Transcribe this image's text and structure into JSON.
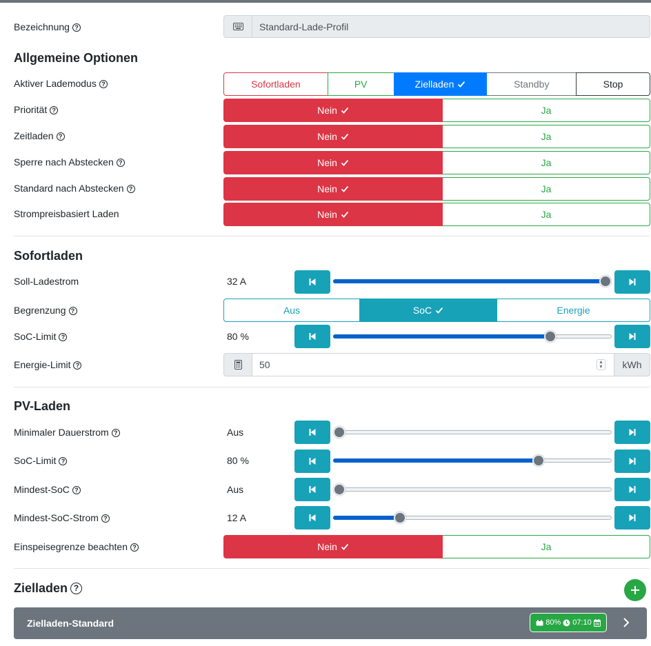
{
  "bezeichnung": {
    "label": "Bezeichnung",
    "value": "Standard-Lade-Profil",
    "icon": "keyboard-icon"
  },
  "allgemein": {
    "heading": "Allgemeine Optionen",
    "lademodus": {
      "label": "Aktiver Lademodus",
      "options": [
        "Sofortladen",
        "PV",
        "Zielladen",
        "Standby",
        "Stop"
      ],
      "selected": "Zielladen"
    },
    "prioritaet": {
      "label": "Priorität",
      "no": "Nein",
      "yes": "Ja",
      "selected": "Nein"
    },
    "zeitladen": {
      "label": "Zeitladen",
      "no": "Nein",
      "yes": "Ja",
      "selected": "Nein"
    },
    "sperre": {
      "label": "Sperre nach Abstecken",
      "no": "Nein",
      "yes": "Ja",
      "selected": "Nein"
    },
    "standard": {
      "label": "Standard nach Abstecken",
      "no": "Nein",
      "yes": "Ja",
      "selected": "Nein"
    },
    "strompreis": {
      "label": "Strompreisbasiert Laden",
      "no": "Nein",
      "yes": "Ja",
      "selected": "Nein"
    }
  },
  "sofortladen": {
    "heading": "Sofortladen",
    "soll": {
      "label": "Soll-Ladestrom",
      "value": "32 A",
      "fraction": 0.98
    },
    "begrenzung": {
      "label": "Begrenzung",
      "options": [
        "Aus",
        "SoC",
        "Energie"
      ],
      "selected": "SoC"
    },
    "soc_limit": {
      "label": "SoC-Limit",
      "value": "80 %",
      "fraction": 0.78
    },
    "energie_limit": {
      "label": "Energie-Limit",
      "value": "50",
      "unit": "kWh",
      "icon": "calculator-icon"
    }
  },
  "pv": {
    "heading": "PV-Laden",
    "min_dauerstrom": {
      "label": "Minimaler Dauerstrom",
      "value": "Aus",
      "fraction": 0.02
    },
    "soc_limit": {
      "label": "SoC-Limit",
      "value": "80 %",
      "fraction": 0.74
    },
    "mindest_soc": {
      "label": "Mindest-SoC",
      "value": "Aus",
      "fraction": 0.02
    },
    "mindest_soc_strom": {
      "label": "Mindest-SoC-Strom",
      "value": "12 A",
      "fraction": 0.24
    },
    "einspeise": {
      "label": "Einspeisegrenze beachten",
      "no": "Nein",
      "yes": "Ja",
      "selected": "Nein"
    }
  },
  "zielladen": {
    "heading": "Zielladen",
    "card": {
      "title": "Zielladen-Standard",
      "soc": "80%",
      "time": "07:10"
    }
  },
  "colors": {
    "red": "#dc3545",
    "green": "#28a745",
    "blue": "#007bff",
    "teal": "#17a2b8",
    "grey": "#6c757d"
  }
}
